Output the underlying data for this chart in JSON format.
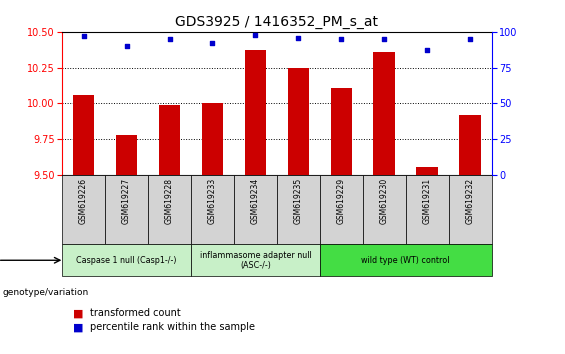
{
  "title": "GDS3925 / 1416352_PM_s_at",
  "samples": [
    "GSM619226",
    "GSM619227",
    "GSM619228",
    "GSM619233",
    "GSM619234",
    "GSM619235",
    "GSM619229",
    "GSM619230",
    "GSM619231",
    "GSM619232"
  ],
  "red_values": [
    10.06,
    9.78,
    9.99,
    10.0,
    10.37,
    10.25,
    10.11,
    10.36,
    9.55,
    9.92
  ],
  "blue_values": [
    97,
    90,
    95,
    92,
    98,
    96,
    95,
    95,
    87,
    95
  ],
  "ylim_left": [
    9.5,
    10.5
  ],
  "ylim_right": [
    0,
    100
  ],
  "yticks_left": [
    9.5,
    9.75,
    10.0,
    10.25,
    10.5
  ],
  "yticks_right": [
    0,
    25,
    50,
    75,
    100
  ],
  "bar_color": "#cc0000",
  "dot_color": "#0000cc",
  "bar_bottom": 9.5,
  "groups": [
    {
      "label": "Caspase 1 null (Casp1-/-)",
      "indices": [
        0,
        1,
        2
      ],
      "color": "#c8f0c8"
    },
    {
      "label": "inflammasome adapter null\n(ASC-/-)",
      "indices": [
        3,
        4,
        5
      ],
      "color": "#c8f0c8"
    },
    {
      "label": "wild type (WT) control",
      "indices": [
        6,
        7,
        8,
        9
      ],
      "color": "#44dd44"
    }
  ],
  "legend_red": "transformed count",
  "legend_blue": "percentile rank within the sample",
  "genotype_label": "genotype/variation",
  "title_fontsize": 10,
  "tick_fontsize": 7,
  "bar_width": 0.5,
  "xlim": [
    -0.5,
    9.5
  ]
}
